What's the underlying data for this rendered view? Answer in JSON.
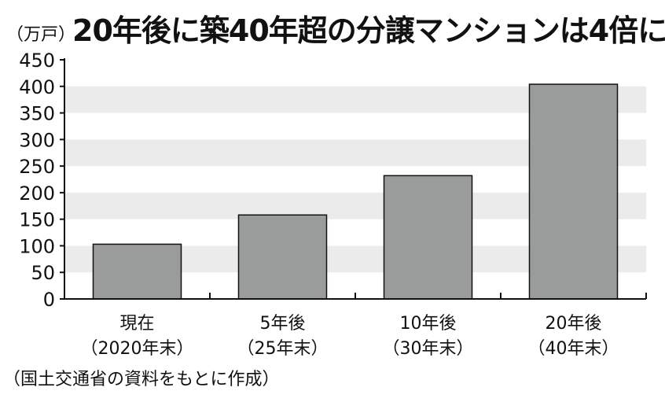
{
  "header": {
    "unit": "（万戸）",
    "title": "20年後に築40年超の分譲マンションは4倍に"
  },
  "footer": {
    "source": "（国土交通省の資料をもとに作成）"
  },
  "colors": {
    "bar_fill": "#9a9c9b",
    "bar_stroke": "#111111",
    "band_fill": "#ebebeb",
    "axis": "#111111"
  },
  "chart_data": {
    "type": "bar",
    "title": "20年後に築40年超の分譲マンションは4倍に",
    "ylabel": "（万戸）",
    "xlabel": "",
    "ylim": [
      0,
      450
    ],
    "yticks": [
      0,
      50,
      100,
      150,
      200,
      250,
      300,
      350,
      400,
      450
    ],
    "grid": "alternating horizontal bands",
    "categories": [
      [
        "現在",
        "（2020年末）"
      ],
      [
        "5年後",
        "（25年末）"
      ],
      [
        "10年後",
        "（30年末）"
      ],
      [
        "20年後",
        "（40年末）"
      ]
    ],
    "values": [
      103,
      158,
      232,
      404
    ]
  }
}
